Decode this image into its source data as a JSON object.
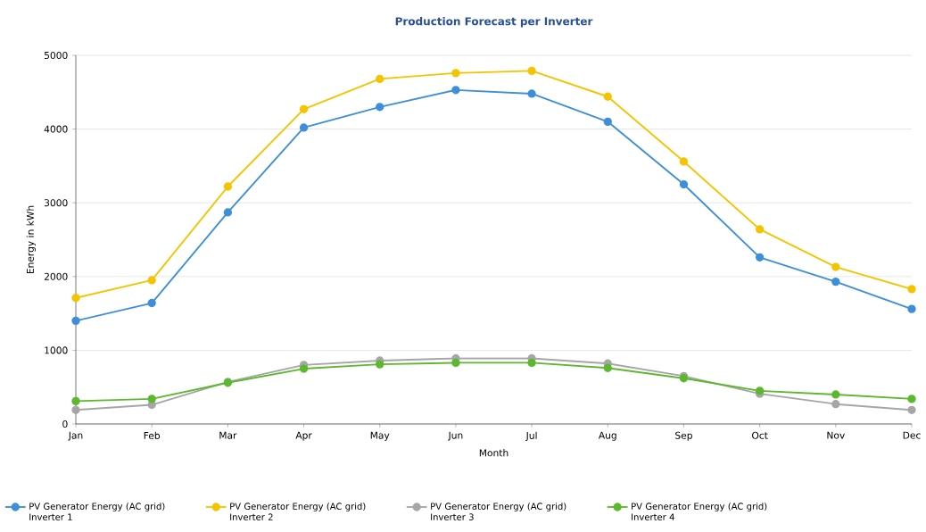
{
  "chart_data": {
    "type": "line",
    "title": "Production Forecast per Inverter",
    "xlabel": "Month",
    "ylabel": "Energy in kWh",
    "categories": [
      "Jan",
      "Feb",
      "Mar",
      "Apr",
      "May",
      "Jun",
      "Jul",
      "Aug",
      "Sep",
      "Oct",
      "Nov",
      "Dec"
    ],
    "series": [
      {
        "name": "PV Generator Energy (AC grid) Inverter 1",
        "color": "#3d8fd9",
        "values": [
          1400,
          1640,
          2870,
          4020,
          4300,
          4530,
          4480,
          4100,
          3250,
          2260,
          1930,
          1560
        ]
      },
      {
        "name": "PV Generator Energy (AC grid) Inverter 2",
        "color": "#f5c400",
        "values": [
          1710,
          1950,
          3220,
          4270,
          4680,
          4760,
          4790,
          4440,
          3560,
          2640,
          2130,
          1830
        ]
      },
      {
        "name": "PV Generator Energy (AC grid) Inverter 3",
        "color": "#a6a6a6",
        "values": [
          190,
          260,
          570,
          800,
          860,
          890,
          890,
          820,
          650,
          410,
          270,
          190
        ]
      },
      {
        "name": "PV Generator Energy (AC grid) Inverter 4",
        "color": "#5cb82e",
        "values": [
          310,
          340,
          560,
          750,
          810,
          830,
          830,
          760,
          620,
          450,
          400,
          340
        ]
      }
    ],
    "ylim": [
      0,
      5000
    ],
    "yticks": [
      0,
      1000,
      2000,
      3000,
      4000,
      5000
    ],
    "grid": "y",
    "legend": "bottom",
    "marker": "circle",
    "line_style": "solid"
  }
}
